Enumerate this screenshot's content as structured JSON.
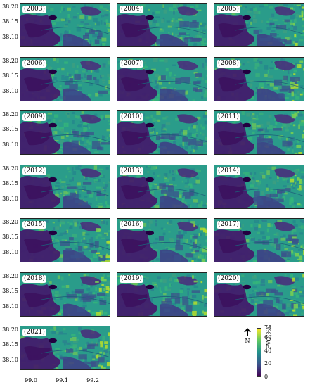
{
  "panels": [
    "(2003)",
    "(2004)",
    "(2005)",
    "(2006)",
    "(2007)",
    "(2008)",
    "(2009)",
    "(2010)",
    "(2011)",
    "(2012)",
    "(2013)",
    "(2014)",
    "(2015)",
    "(2016)",
    "(2017)",
    "(2018)",
    "(2019)",
    "(2020)",
    "(2021)"
  ],
  "yticks": [
    "38.20",
    "38.15",
    "38.10"
  ],
  "xticks": [
    "99.0",
    "99.1",
    "99.2"
  ],
  "colorbar": {
    "label": "FVC(%)",
    "ticks": [
      "75",
      "60",
      "40",
      "20",
      "0"
    ],
    "colors": [
      "#440154",
      "#3b528b",
      "#21908d",
      "#5dc863",
      "#fde725"
    ]
  },
  "north": {
    "label": "N"
  }
}
